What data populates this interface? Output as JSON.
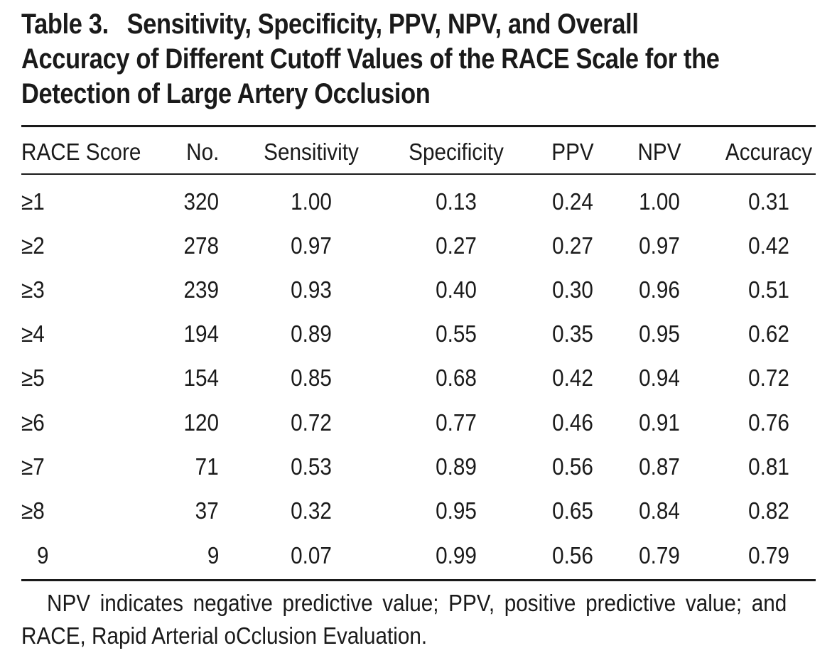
{
  "title": {
    "label": "Table 3.",
    "line1": "Sensitivity, Specificity, PPV, NPV, and Overall",
    "line2": "Accuracy of Different Cutoff Values of the RACE Scale for the",
    "line3": "Detection of Large Artery Occlusion"
  },
  "table": {
    "headers": {
      "score": "RACE Score",
      "no": "No.",
      "sensitivity": "Sensitivity",
      "specificity": "Specificity",
      "ppv": "PPV",
      "npv": "NPV",
      "accuracy": "Accuracy"
    },
    "rows": [
      {
        "score": "≥1",
        "no": "320",
        "sensitivity": "1.00",
        "specificity": "0.13",
        "ppv": "0.24",
        "npv": "1.00",
        "accuracy": "0.31"
      },
      {
        "score": "≥2",
        "no": "278",
        "sensitivity": "0.97",
        "specificity": "0.27",
        "ppv": "0.27",
        "npv": "0.97",
        "accuracy": "0.42"
      },
      {
        "score": "≥3",
        "no": "239",
        "sensitivity": "0.93",
        "specificity": "0.40",
        "ppv": "0.30",
        "npv": "0.96",
        "accuracy": "0.51"
      },
      {
        "score": "≥4",
        "no": "194",
        "sensitivity": "0.89",
        "specificity": "0.55",
        "ppv": "0.35",
        "npv": "0.95",
        "accuracy": "0.62"
      },
      {
        "score": "≥5",
        "no": "154",
        "sensitivity": "0.85",
        "specificity": "0.68",
        "ppv": "0.42",
        "npv": "0.94",
        "accuracy": "0.72"
      },
      {
        "score": "≥6",
        "no": "120",
        "sensitivity": "0.72",
        "specificity": "0.77",
        "ppv": "0.46",
        "npv": "0.91",
        "accuracy": "0.76"
      },
      {
        "score": "≥7",
        "no": "71",
        "sensitivity": "0.53",
        "specificity": "0.89",
        "ppv": "0.56",
        "npv": "0.87",
        "accuracy": "0.81"
      },
      {
        "score": "≥8",
        "no": "37",
        "sensitivity": "0.32",
        "specificity": "0.95",
        "ppv": "0.65",
        "npv": "0.84",
        "accuracy": "0.82"
      },
      {
        "score": "9",
        "no": "9",
        "sensitivity": "0.07",
        "specificity": "0.99",
        "ppv": "0.56",
        "npv": "0.79",
        "accuracy": "0.79"
      }
    ]
  },
  "footnote": {
    "line1": "NPV indicates negative predictive value; PPV, positive predictive value; and",
    "line2": "RACE, Rapid Arterial oCclusion Evaluation."
  }
}
